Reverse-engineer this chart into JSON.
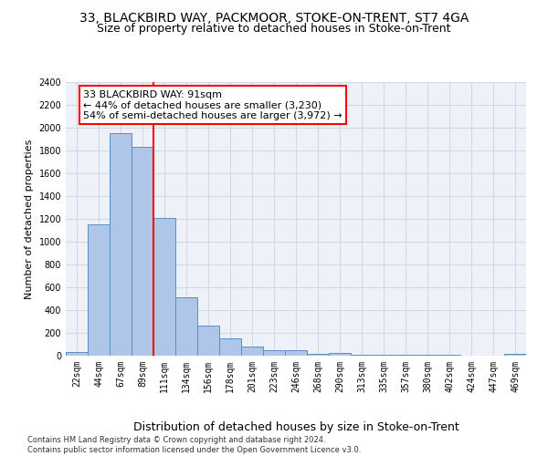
{
  "title": "33, BLACKBIRD WAY, PACKMOOR, STOKE-ON-TRENT, ST7 4GA",
  "subtitle": "Size of property relative to detached houses in Stoke-on-Trent",
  "xlabel": "Distribution of detached houses by size in Stoke-on-Trent",
  "ylabel": "Number of detached properties",
  "footnote": "Contains HM Land Registry data © Crown copyright and database right 2024.\nContains public sector information licensed under the Open Government Licence v3.0.",
  "bar_labels": [
    "22sqm",
    "44sqm",
    "67sqm",
    "89sqm",
    "111sqm",
    "134sqm",
    "156sqm",
    "178sqm",
    "201sqm",
    "223sqm",
    "246sqm",
    "268sqm",
    "290sqm",
    "313sqm",
    "335sqm",
    "357sqm",
    "380sqm",
    "402sqm",
    "424sqm",
    "447sqm",
    "469sqm"
  ],
  "bar_values": [
    30,
    1150,
    1950,
    1830,
    1210,
    510,
    265,
    155,
    80,
    50,
    45,
    15,
    25,
    10,
    5,
    5,
    5,
    5,
    0,
    0,
    20
  ],
  "bar_color": "#aec6e8",
  "bar_edge_color": "#5a8fc2",
  "ylim": [
    0,
    2400
  ],
  "yticks": [
    0,
    200,
    400,
    600,
    800,
    1000,
    1200,
    1400,
    1600,
    1800,
    2000,
    2200,
    2400
  ],
  "property_label": "33 BLACKBIRD WAY: 91sqm",
  "annotation_line1": "← 44% of detached houses are smaller (3,230)",
  "annotation_line2": "54% of semi-detached houses are larger (3,972) →",
  "vline_pos": 3.5,
  "grid_color": "#d0d8e8",
  "background_color": "#eef2f8",
  "title_fontsize": 10,
  "subtitle_fontsize": 9,
  "xlabel_fontsize": 9,
  "ylabel_fontsize": 8,
  "tick_fontsize": 7,
  "annot_fontsize": 8,
  "footnote_fontsize": 6
}
